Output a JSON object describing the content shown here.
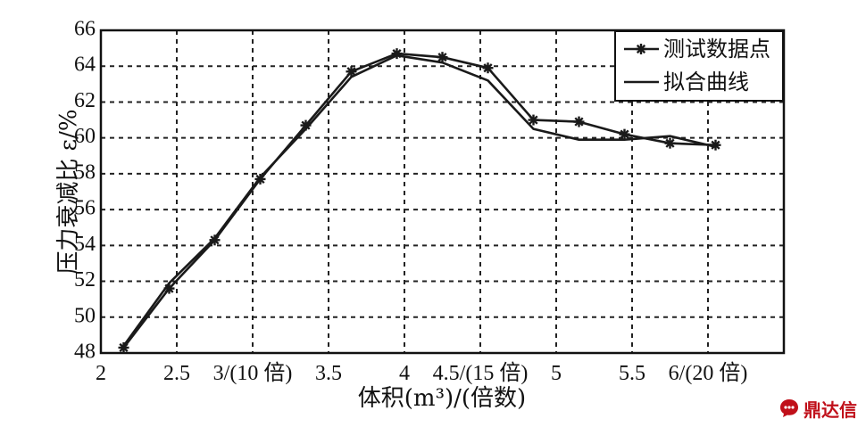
{
  "chart_data": {
    "type": "line",
    "xlabel": "体积(m³)/(倍数)",
    "ylabel": "压力衰减比 ε/%",
    "xlim": [
      2,
      6.5
    ],
    "ylim": [
      48,
      66
    ],
    "x_ticks": [
      {
        "value": 2,
        "label": "2"
      },
      {
        "value": 2.5,
        "label": "2.5"
      },
      {
        "value": 3,
        "label": "3/(10 倍)"
      },
      {
        "value": 3.5,
        "label": "3.5"
      },
      {
        "value": 4,
        "label": "4"
      },
      {
        "value": 4.5,
        "label": "4.5/(15 倍)"
      },
      {
        "value": 5,
        "label": "5"
      },
      {
        "value": 5.5,
        "label": "5.5"
      },
      {
        "value": 6,
        "label": "6/(20 倍)"
      }
    ],
    "y_ticks": [
      48,
      50,
      52,
      54,
      56,
      58,
      60,
      62,
      64,
      66
    ],
    "grid": true,
    "legend_position": "top-right",
    "series": [
      {
        "name": "测试数据点",
        "marker": "asterisk",
        "color": "#1a1a1a",
        "x": [
          2.15,
          2.45,
          2.75,
          3.05,
          3.35,
          3.65,
          3.95,
          4.25,
          4.55,
          4.85,
          5.15,
          5.45,
          5.75,
          6.05
        ],
        "y": [
          48.3,
          51.6,
          54.3,
          57.7,
          60.7,
          63.7,
          64.7,
          64.5,
          63.9,
          61.0,
          60.9,
          60.2,
          59.7,
          59.6
        ]
      },
      {
        "name": "拟合曲线",
        "marker": "none",
        "color": "#1a1a1a",
        "x": [
          2.15,
          2.45,
          2.75,
          3.05,
          3.35,
          3.65,
          3.95,
          4.25,
          4.55,
          4.85,
          5.15,
          5.45,
          5.75,
          6.05
        ],
        "y": [
          48.4,
          51.9,
          54.4,
          57.8,
          60.5,
          63.4,
          64.6,
          64.2,
          63.2,
          60.5,
          59.9,
          59.9,
          60.1,
          59.5
        ]
      }
    ]
  },
  "watermark": {
    "text": "鼎达信",
    "color": "#c0101a",
    "icon": "chat-bubble-logo-icon"
  }
}
